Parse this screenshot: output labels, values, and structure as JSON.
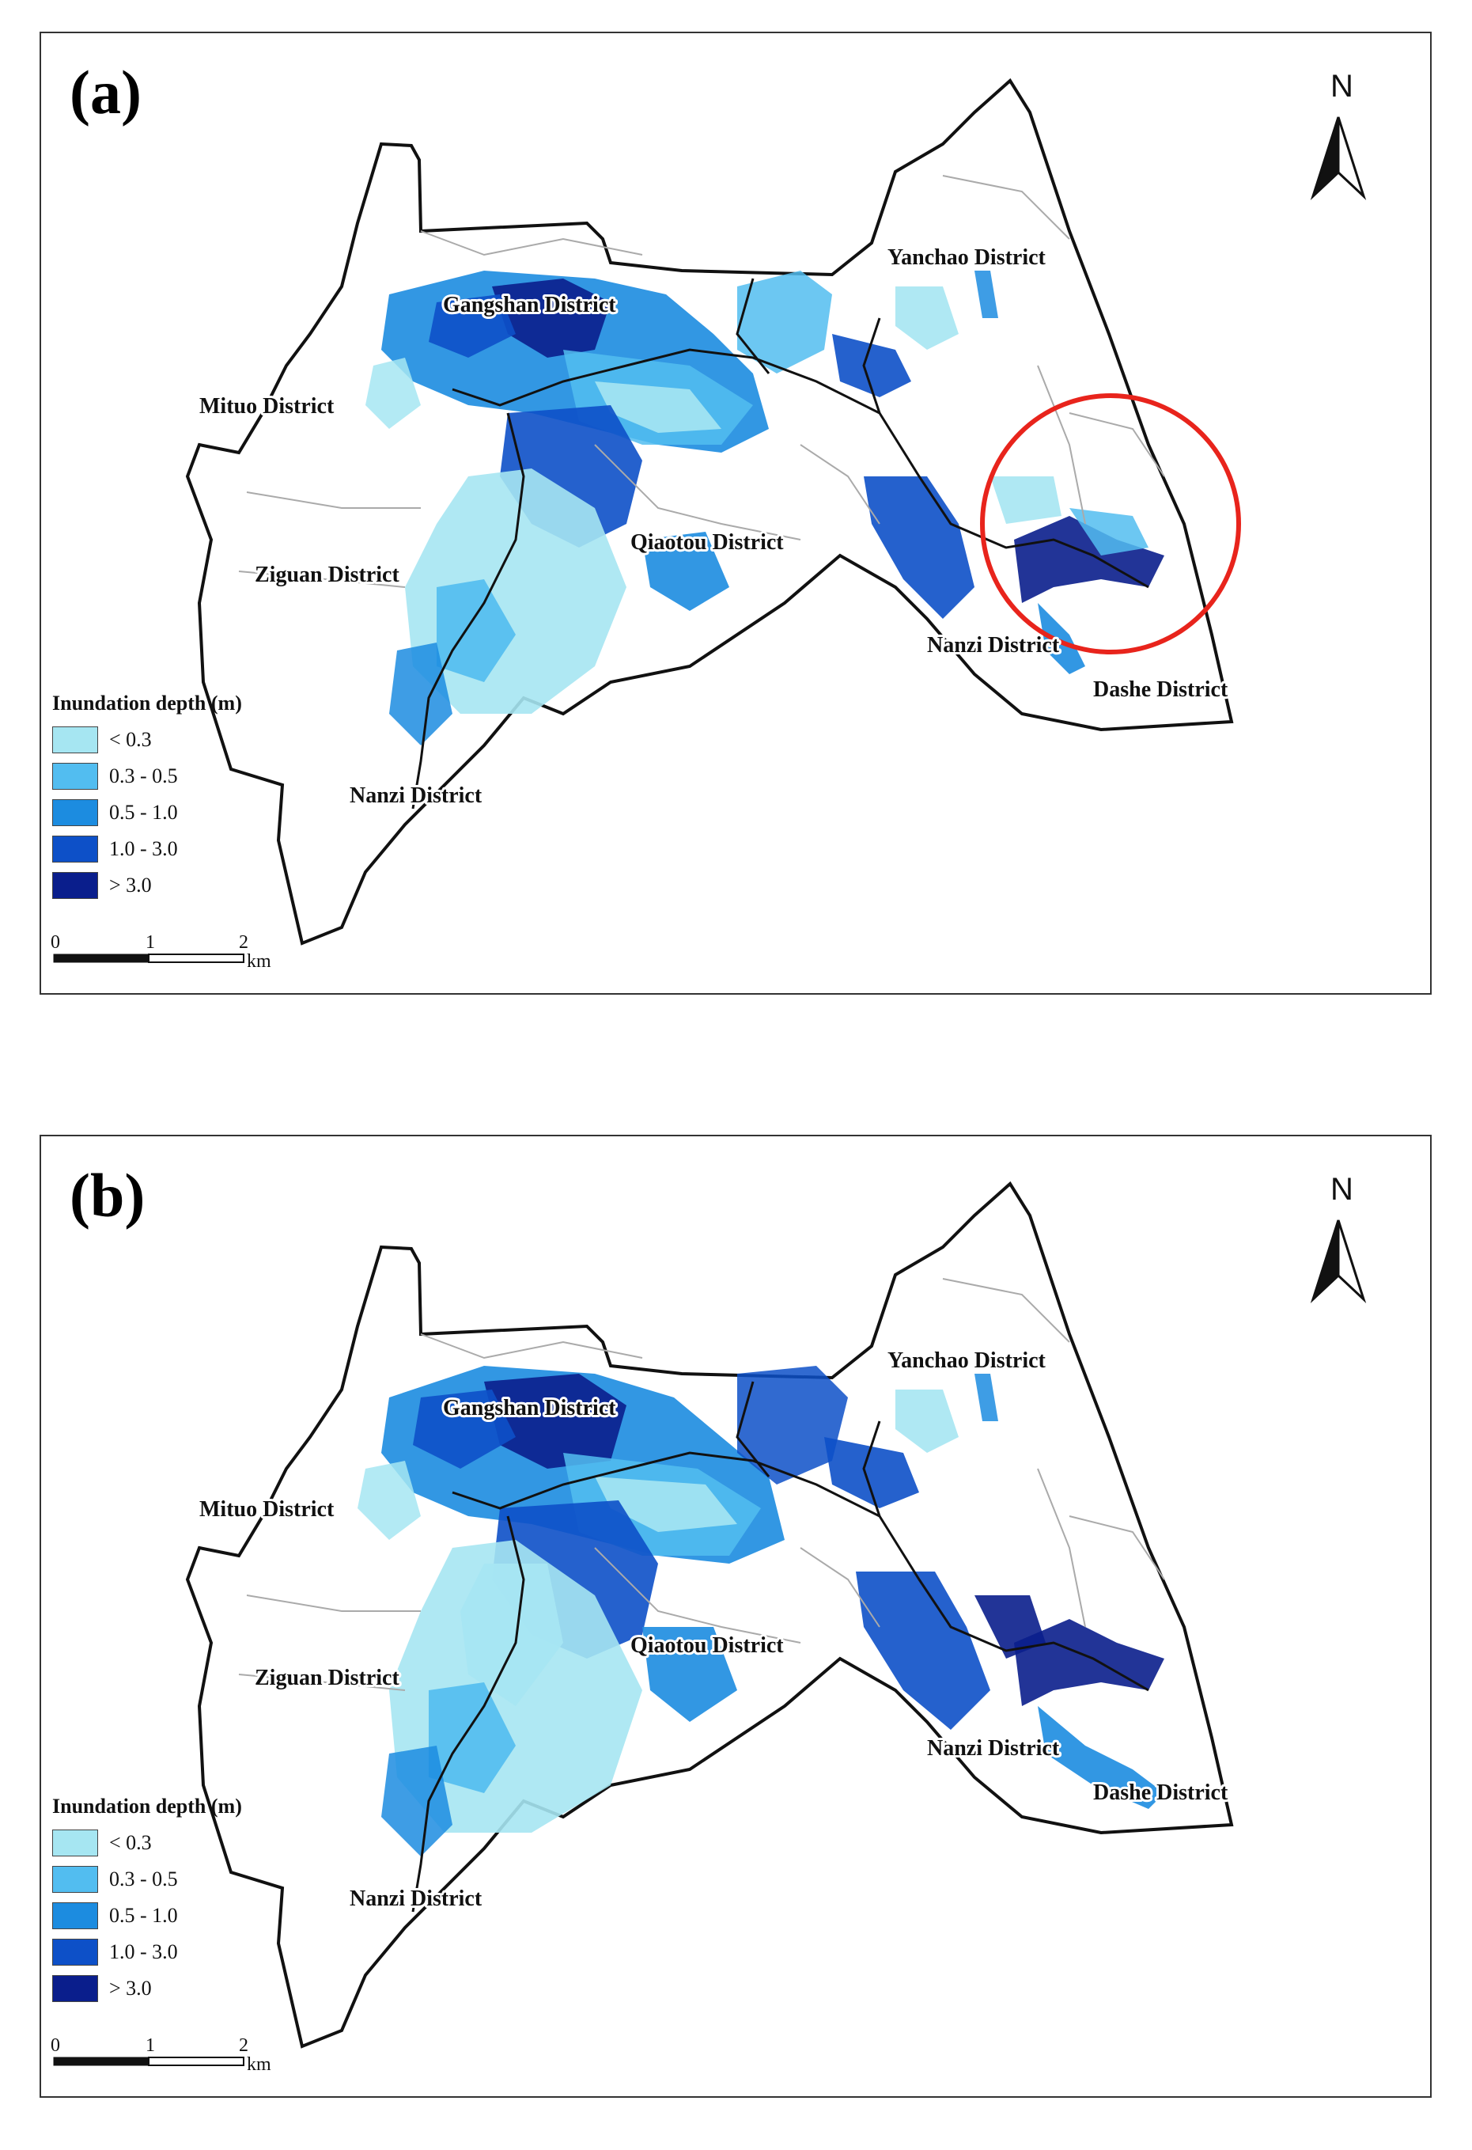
{
  "panels": [
    {
      "label": "(a)",
      "districts": {
        "gangshan": "Gangshan District",
        "yanchao": "Yanchao District",
        "mituo": "Mituo District",
        "qiaotou": "Qiaotou District",
        "ziguan": "Ziguan District",
        "nanzi_east": "Nanzi District",
        "dashe": "Dashe District",
        "nanzi_south": "Nanzi District"
      },
      "highlight_circle": true
    },
    {
      "label": "(b)",
      "districts": {
        "gangshan": "Gangshan District",
        "yanchao": "Yanchao District",
        "mituo": "Mituo District",
        "qiaotou": "Qiaotou District",
        "ziguan": "Ziguan District",
        "nanzi_east": "Nanzi District",
        "dashe": "Dashe District",
        "nanzi_south": "Nanzi District"
      },
      "highlight_circle": false
    }
  ],
  "north_arrow": "N",
  "legend": {
    "title": "Inundation depth (m)",
    "classes": [
      {
        "label": "< 0.3",
        "color": "#a6e6f2"
      },
      {
        "label": "0.3 - 0.5",
        "color": "#52bdf0"
      },
      {
        "label": "0.5 - 1.0",
        "color": "#1c8ce0"
      },
      {
        "label": "1.0 - 3.0",
        "color": "#0d50c8"
      },
      {
        "label": "> 3.0",
        "color": "#0a1e8c"
      }
    ]
  },
  "scale_bar": {
    "ticks": [
      "0",
      "1",
      "2"
    ],
    "unit": "km"
  },
  "colors": {
    "boundary": "#111111",
    "sub_boundary": "#aaaaaa",
    "circle": "#e8241c"
  }
}
